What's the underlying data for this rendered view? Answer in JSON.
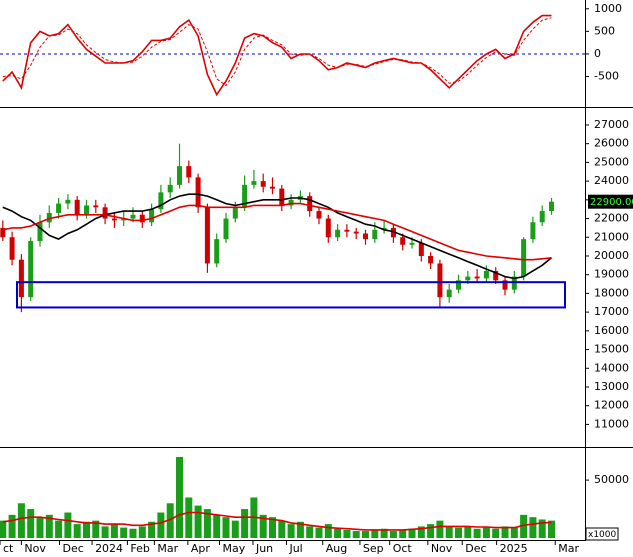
{
  "chart_data": [
    {
      "type": "line",
      "xlim": [
        -0.3,
        62.6
      ],
      "ylim": [
        -1130,
        1150
      ],
      "yticks": [
        1000,
        500,
        0,
        -500
      ],
      "zero_line_color": "#0000cc",
      "series": [
        {
          "color": "#e00000",
          "dash": false,
          "values": [
            -600,
            -400,
            -750,
            250,
            500,
            400,
            450,
            650,
            350,
            100,
            -50,
            -200,
            -200,
            -200,
            -150,
            50,
            300,
            300,
            350,
            600,
            750,
            400,
            -450,
            -900,
            -600,
            -200,
            350,
            450,
            400,
            250,
            150,
            -100,
            0,
            0,
            -150,
            -350,
            -300,
            -200,
            -250,
            -300,
            -200,
            -150,
            -100,
            -150,
            -200,
            -200,
            -350,
            -550,
            -750,
            -550,
            -350,
            -150,
            0,
            100,
            -100,
            0,
            500,
            700,
            850,
            850
          ]
        },
        {
          "color": "#e00000",
          "dash": true,
          "values": [
            -500,
            -480,
            -550,
            -250,
            150,
            400,
            420,
            550,
            450,
            200,
            30,
            -120,
            -180,
            -200,
            -180,
            -50,
            150,
            280,
            320,
            480,
            650,
            550,
            50,
            -550,
            -700,
            -400,
            100,
            350,
            420,
            300,
            200,
            0,
            -30,
            0,
            -100,
            -250,
            -300,
            -230,
            -230,
            -280,
            -230,
            -170,
            -120,
            -130,
            -180,
            -200,
            -300,
            -450,
            -650,
            -600,
            -450,
            -250,
            -80,
            50,
            0,
            -30,
            300,
            550,
            750,
            800
          ]
        }
      ]
    },
    {
      "type": "candlestick",
      "xlim": [
        -0.3,
        62.6
      ],
      "ylim": [
        9900,
        27800
      ],
      "yticks": [
        11000,
        12000,
        13000,
        14000,
        15000,
        16000,
        17000,
        18000,
        19000,
        20000,
        21000,
        22000,
        23000,
        24000,
        25000,
        26000,
        27000
      ],
      "up_color": "#1a9e1a",
      "down_color": "#d00000",
      "ohlc": [
        [
          21500,
          21900,
          20800,
          21000
        ],
        [
          21000,
          21300,
          19500,
          19800
        ],
        [
          19800,
          20100,
          17000,
          17800
        ],
        [
          17800,
          21000,
          17600,
          20800
        ],
        [
          20800,
          22200,
          20500,
          21800
        ],
        [
          21800,
          22700,
          21500,
          22300
        ],
        [
          22300,
          23100,
          22000,
          22800
        ],
        [
          22800,
          23300,
          22500,
          23000
        ],
        [
          23000,
          23200,
          21900,
          22200
        ],
        [
          22200,
          23000,
          22000,
          22700
        ],
        [
          22700,
          23000,
          22300,
          22600
        ],
        [
          22600,
          22800,
          21700,
          22000
        ],
        [
          22000,
          22300,
          21500,
          21900
        ],
        [
          21900,
          22400,
          21600,
          22000
        ],
        [
          22000,
          22600,
          21800,
          22200
        ],
        [
          22200,
          22400,
          21500,
          21800
        ],
        [
          21800,
          22800,
          21600,
          22500
        ],
        [
          22500,
          23800,
          22300,
          23400
        ],
        [
          23400,
          24200,
          23100,
          23800
        ],
        [
          23800,
          26000,
          23600,
          24800
        ],
        [
          24800,
          25100,
          23900,
          24200
        ],
        [
          24200,
          24400,
          22300,
          22600
        ],
        [
          22600,
          22800,
          19100,
          19600
        ],
        [
          19600,
          21200,
          19400,
          20900
        ],
        [
          20900,
          22300,
          20700,
          22000
        ],
        [
          22000,
          22900,
          21800,
          22600
        ],
        [
          22600,
          24300,
          22400,
          23800
        ],
        [
          23800,
          24600,
          23600,
          24000
        ],
        [
          24000,
          24400,
          23400,
          23700
        ],
        [
          23700,
          24200,
          23300,
          23600
        ],
        [
          23600,
          23800,
          22400,
          22700
        ],
        [
          22700,
          23300,
          22500,
          23000
        ],
        [
          23000,
          23500,
          22800,
          23200
        ],
        [
          23200,
          23400,
          22100,
          22400
        ],
        [
          22400,
          22600,
          21700,
          22000
        ],
        [
          22000,
          22200,
          20700,
          21000
        ],
        [
          21000,
          21700,
          20800,
          21400
        ],
        [
          21400,
          21700,
          21000,
          21300
        ],
        [
          21300,
          21500,
          20900,
          21200
        ],
        [
          21200,
          21400,
          20600,
          20900
        ],
        [
          20900,
          21800,
          20700,
          21400
        ],
        [
          21400,
          21900,
          21200,
          21500
        ],
        [
          21500,
          21700,
          20700,
          21000
        ],
        [
          21000,
          21200,
          20300,
          20600
        ],
        [
          20600,
          21000,
          20400,
          20700
        ],
        [
          20700,
          20900,
          19700,
          20000
        ],
        [
          20000,
          20200,
          19300,
          19600
        ],
        [
          19600,
          19800,
          17200,
          17800
        ],
        [
          17800,
          18500,
          17500,
          18200
        ],
        [
          18200,
          19000,
          18000,
          18700
        ],
        [
          18700,
          19200,
          18500,
          18900
        ],
        [
          18900,
          19300,
          18600,
          18800
        ],
        [
          18800,
          19500,
          18600,
          19200
        ],
        [
          19200,
          19400,
          18500,
          18700
        ],
        [
          18700,
          18900,
          17900,
          18200
        ],
        [
          18200,
          19200,
          18000,
          18900
        ],
        [
          18900,
          21000,
          18700,
          20900
        ],
        [
          20900,
          22100,
          20700,
          21800
        ],
        [
          21800,
          22700,
          21600,
          22400
        ],
        [
          22400,
          23100,
          22200,
          22900
        ]
      ],
      "ma": [
        {
          "color": "#000000",
          "values": [
            22600,
            22400,
            22100,
            21900,
            21500,
            21100,
            20900,
            21200,
            21400,
            21700,
            22000,
            22200,
            22300,
            22400,
            22400,
            22400,
            22500,
            22700,
            23000,
            23200,
            23300,
            23300,
            23200,
            23000,
            22800,
            22700,
            22800,
            22900,
            23000,
            23000,
            23000,
            23100,
            23100,
            23000,
            22800,
            22600,
            22300,
            22100,
            21900,
            21700,
            21600,
            21400,
            21300,
            21100,
            20900,
            20700,
            20500,
            20300,
            20100,
            19900,
            19700,
            19500,
            19300,
            19100,
            18900,
            18800,
            18900,
            19200,
            19500,
            19900
          ]
        },
        {
          "color": "#e00000",
          "values": [
            21400,
            21500,
            21500,
            21600,
            21800,
            22000,
            22100,
            22200,
            22200,
            22200,
            22200,
            22200,
            22100,
            22000,
            21900,
            21900,
            22000,
            22200,
            22400,
            22600,
            22700,
            22700,
            22600,
            22600,
            22600,
            22600,
            22600,
            22700,
            22700,
            22700,
            22700,
            22800,
            22800,
            22700,
            22600,
            22500,
            22400,
            22300,
            22200,
            22100,
            22000,
            21900,
            21700,
            21500,
            21300,
            21100,
            20900,
            20700,
            20500,
            20300,
            20200,
            20100,
            20000,
            19950,
            19900,
            19850,
            19800,
            19800,
            19850,
            19900
          ]
        }
      ],
      "zone": [
        17250,
        18600
      ],
      "zone_color": "#0000cc",
      "last_label": "22900.00"
    },
    {
      "type": "bar",
      "xlim": [
        -0.3,
        62.6
      ],
      "ylim": [
        0,
        76000
      ],
      "yticks": [
        50000
      ],
      "color": "#1a9e1a",
      "values": [
        15000,
        20000,
        30000,
        25000,
        18000,
        20000,
        15000,
        22000,
        12000,
        14000,
        15000,
        10000,
        12000,
        9000,
        8000,
        10000,
        14000,
        22000,
        30000,
        70000,
        35000,
        28000,
        25000,
        20000,
        18000,
        15000,
        25000,
        35000,
        20000,
        18000,
        15000,
        12000,
        14000,
        10000,
        9000,
        12000,
        8000,
        7000,
        6000,
        6000,
        7000,
        8000,
        6000,
        7000,
        8000,
        10000,
        12000,
        15000,
        10000,
        9000,
        10000,
        8000,
        9000,
        8000,
        10000,
        9000,
        20000,
        18000,
        16000,
        15000
      ],
      "ma": {
        "color": "#e00000",
        "values": [
          14000,
          15000,
          17000,
          18000,
          18000,
          17000,
          16000,
          15000,
          14000,
          13000,
          13000,
          12000,
          12000,
          12000,
          11000,
          11000,
          12000,
          13000,
          16000,
          20000,
          22000,
          22000,
          21000,
          20000,
          19000,
          18000,
          18000,
          18000,
          17000,
          16000,
          15000,
          13000,
          12000,
          11000,
          10000,
          9000,
          8500,
          8000,
          7500,
          7000,
          7000,
          7000,
          7000,
          7000,
          7500,
          8000,
          9000,
          10000,
          10000,
          10000,
          10000,
          9500,
          9500,
          9000,
          9000,
          9000,
          11000,
          12000,
          13000,
          13500
        ]
      },
      "unit_label": "x1000",
      "xticks": [
        {
          "value": -0.3,
          "label": "ct"
        },
        {
          "value": 2.0,
          "label": "Nov"
        },
        {
          "value": 6.1,
          "label": "Dec"
        },
        {
          "value": 9.6,
          "label": "2024"
        },
        {
          "value": 13.4,
          "label": "Feb"
        },
        {
          "value": 16.3,
          "label": "Mar"
        },
        {
          "value": 19.9,
          "label": "Apr"
        },
        {
          "value": 23.3,
          "label": "May"
        },
        {
          "value": 26.9,
          "label": "Jun"
        },
        {
          "value": 30.5,
          "label": "Jul"
        },
        {
          "value": 34.4,
          "label": "Aug"
        },
        {
          "value": 38.4,
          "label": "Sep"
        },
        {
          "value": 41.6,
          "label": "Oct"
        },
        {
          "value": 45.7,
          "label": "Nov"
        },
        {
          "value": 49.4,
          "label": "Dec"
        },
        {
          "value": 53.1,
          "label": "2025"
        },
        {
          "value": 59.4,
          "label": "Mar"
        }
      ]
    }
  ]
}
